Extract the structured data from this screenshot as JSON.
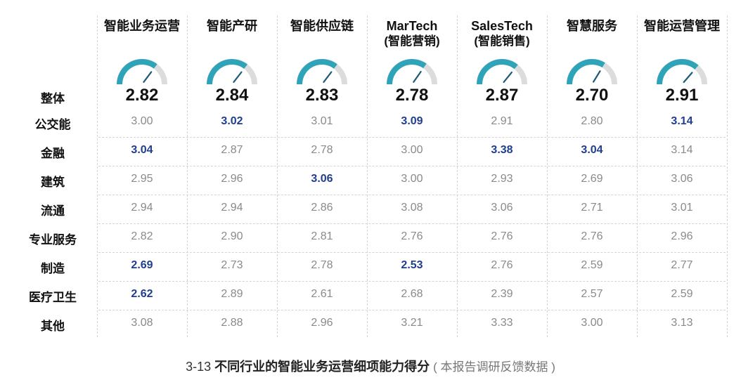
{
  "chart_data": {
    "type": "table",
    "columns": [
      {
        "name": "智能业务运营",
        "sub": ""
      },
      {
        "name": "智能产研",
        "sub": ""
      },
      {
        "name": "智能供应链",
        "sub": ""
      },
      {
        "name": "MarTech",
        "sub": "(智能营销)"
      },
      {
        "name": "SalesTech",
        "sub": "(智能销售)"
      },
      {
        "name": "智慧服务",
        "sub": ""
      },
      {
        "name": "智能运营管理",
        "sub": ""
      }
    ],
    "overall_label": "整体",
    "overall": [
      "2.82",
      "2.84",
      "2.83",
      "2.78",
      "2.87",
      "2.70",
      "2.91"
    ],
    "rows": [
      {
        "label": "公交能",
        "values": [
          "3.00",
          "3.02",
          "3.01",
          "3.09",
          "2.91",
          "2.80",
          "3.14"
        ],
        "highlight": [
          false,
          true,
          false,
          true,
          false,
          false,
          true
        ]
      },
      {
        "label": "金融",
        "values": [
          "3.04",
          "2.87",
          "2.78",
          "3.00",
          "3.38",
          "3.04",
          "3.14"
        ],
        "highlight": [
          true,
          false,
          false,
          false,
          true,
          true,
          false
        ]
      },
      {
        "label": "建筑",
        "values": [
          "2.95",
          "2.96",
          "3.06",
          "3.00",
          "2.93",
          "2.69",
          "3.06"
        ],
        "highlight": [
          false,
          false,
          true,
          false,
          false,
          false,
          false
        ]
      },
      {
        "label": "流通",
        "values": [
          "2.94",
          "2.94",
          "2.86",
          "3.08",
          "3.06",
          "2.71",
          "3.01"
        ],
        "highlight": [
          false,
          false,
          false,
          false,
          false,
          false,
          false
        ]
      },
      {
        "label": "专业服务",
        "values": [
          "2.82",
          "2.90",
          "2.81",
          "2.76",
          "2.76",
          "2.76",
          "2.96"
        ],
        "highlight": [
          false,
          false,
          false,
          false,
          false,
          false,
          false
        ]
      },
      {
        "label": "制造",
        "values": [
          "2.69",
          "2.73",
          "2.78",
          "2.53",
          "2.76",
          "2.59",
          "2.77"
        ],
        "highlight": [
          true,
          false,
          false,
          true,
          false,
          false,
          false
        ]
      },
      {
        "label": "医疗卫生",
        "values": [
          "2.62",
          "2.89",
          "2.61",
          "2.68",
          "2.39",
          "2.57",
          "2.59"
        ],
        "highlight": [
          true,
          false,
          false,
          false,
          false,
          false,
          false
        ]
      },
      {
        "label": "其他",
        "values": [
          "3.08",
          "2.88",
          "2.96",
          "3.21",
          "3.33",
          "3.00",
          "3.13"
        ],
        "highlight": [
          false,
          false,
          false,
          false,
          false,
          false,
          false
        ]
      }
    ],
    "gauge_range": [
      0,
      4
    ]
  },
  "colors": {
    "highlight": "#1f3e8f",
    "normal": "#8a8a8a",
    "gauge_fill": "#2fa3b8",
    "gauge_track": "#dcdcdc",
    "needle": "#1e5a78"
  },
  "caption": {
    "number": "3-13",
    "title": "不同行业的智能业务运营细项能力得分",
    "source": "( 本报告调研反馈数据 )"
  }
}
